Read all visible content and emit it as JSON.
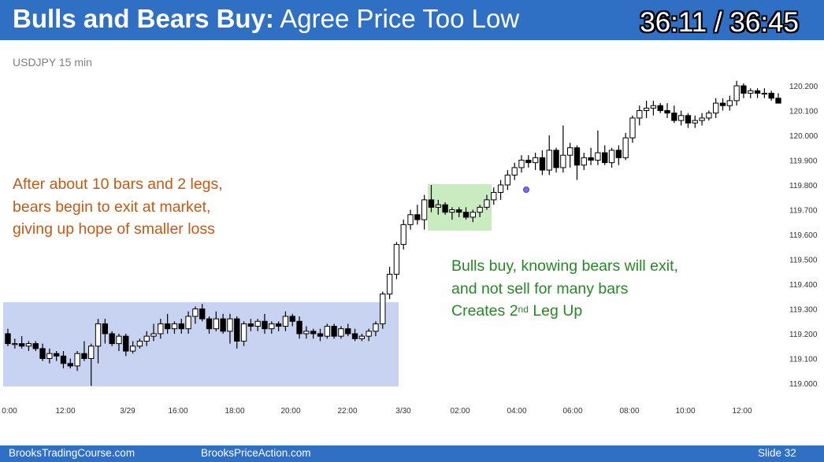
{
  "header": {
    "title_bold": "Bulls and Bears Buy:",
    "title_rest": " Agree Price Too Low",
    "timer": "36:11 / 36:45"
  },
  "symbol_label": "USDJPY 15 min",
  "annotations": {
    "orange": [
      "After about 10 bars and 2 legs,",
      "bears begin to exit at market,",
      "giving up hope of smaller loss"
    ],
    "green_line1": "Bulls buy, knowing bears will exit,",
    "green_line2": "and not sell for many bars",
    "green_line3_a": "Creates 2",
    "green_line3_sup": "nd",
    "green_line3_b": " Leg Up"
  },
  "footer": {
    "left": "BrooksTradingCourse.com",
    "center": "BrooksPriceAction.com",
    "right": "Slide  32"
  },
  "colors": {
    "header": "#2f6fc4",
    "blue_zone": "#c7d3f0",
    "green_zone": "#c9ebc0",
    "orange_text": "#c65911",
    "green_text": "#238a23"
  },
  "chart_data": {
    "type": "candlestick",
    "symbol": "USDJPY",
    "timeframe": "15 min",
    "x_tick_labels": [
      "0:00",
      "12:00",
      "3/29",
      "16:00",
      "18:00",
      "20:00",
      "22:00",
      "3/30",
      "02:00",
      "04:00",
      "06:00",
      "08:00",
      "10:00",
      "12:00"
    ],
    "y_tick_labels": [
      "119.000",
      "119.100",
      "119.200",
      "119.300",
      "119.400",
      "119.500",
      "119.600",
      "119.700",
      "119.800",
      "119.900",
      "120.000",
      "120.100",
      "120.200"
    ],
    "ylim": [
      118.97,
      120.25
    ],
    "zones": [
      {
        "name": "trading range",
        "x_from": "0:00",
        "x_to": "3/30",
        "y_range": [
          119.0,
          119.33
        ]
      },
      {
        "name": "pullback",
        "y_range": [
          119.62,
          119.81
        ]
      }
    ],
    "ohlc": [
      [
        119.2,
        119.22,
        119.15,
        119.16
      ],
      [
        119.16,
        119.18,
        119.14,
        119.16
      ],
      [
        119.16,
        119.19,
        119.14,
        119.15
      ],
      [
        119.15,
        119.17,
        119.13,
        119.16
      ],
      [
        119.16,
        119.17,
        119.13,
        119.14
      ],
      [
        119.14,
        119.16,
        119.09,
        119.1
      ],
      [
        119.1,
        119.14,
        119.08,
        119.12
      ],
      [
        119.12,
        119.13,
        119.09,
        119.11
      ],
      [
        119.11,
        119.13,
        119.06,
        119.08
      ],
      [
        119.08,
        119.1,
        119.06,
        119.07
      ],
      [
        119.07,
        119.13,
        119.05,
        119.12
      ],
      [
        119.12,
        119.17,
        119.09,
        119.1
      ],
      [
        119.1,
        119.16,
        118.99,
        119.15
      ],
      [
        119.15,
        119.26,
        119.08,
        119.24
      ],
      [
        119.24,
        119.26,
        119.16,
        119.2
      ],
      [
        119.2,
        119.21,
        119.15,
        119.16
      ],
      [
        119.16,
        119.2,
        119.13,
        119.19
      ],
      [
        119.19,
        119.2,
        119.11,
        119.13
      ],
      [
        119.13,
        119.17,
        119.12,
        119.15
      ],
      [
        119.15,
        119.18,
        119.14,
        119.17
      ],
      [
        119.17,
        119.21,
        119.15,
        119.19
      ],
      [
        119.19,
        119.24,
        119.17,
        119.2
      ],
      [
        119.2,
        119.26,
        119.18,
        119.24
      ],
      [
        119.24,
        119.28,
        119.2,
        119.22
      ],
      [
        119.22,
        119.25,
        119.2,
        119.24
      ],
      [
        119.24,
        119.26,
        119.2,
        119.22
      ],
      [
        119.22,
        119.29,
        119.2,
        119.27
      ],
      [
        119.27,
        119.31,
        119.24,
        119.3
      ],
      [
        119.3,
        119.32,
        119.25,
        119.26
      ],
      [
        119.26,
        119.27,
        119.2,
        119.22
      ],
      [
        119.22,
        119.29,
        119.21,
        119.26
      ],
      [
        119.26,
        119.28,
        119.2,
        119.21
      ],
      [
        119.21,
        119.28,
        119.16,
        119.26
      ],
      [
        119.26,
        119.27,
        119.14,
        119.17
      ],
      [
        119.17,
        119.25,
        119.15,
        119.24
      ],
      [
        119.24,
        119.26,
        119.21,
        119.23
      ],
      [
        119.23,
        119.26,
        119.21,
        119.25
      ],
      [
        119.25,
        119.28,
        119.2,
        119.22
      ],
      [
        119.22,
        119.25,
        119.2,
        119.24
      ],
      [
        119.24,
        119.25,
        119.21,
        119.23
      ],
      [
        119.23,
        119.29,
        119.21,
        119.27
      ],
      [
        119.27,
        119.28,
        119.23,
        119.25
      ],
      [
        119.25,
        119.27,
        119.18,
        119.2
      ],
      [
        119.2,
        119.23,
        119.18,
        119.21
      ],
      [
        119.21,
        119.22,
        119.18,
        119.2
      ],
      [
        119.2,
        119.22,
        119.17,
        119.19
      ],
      [
        119.19,
        119.24,
        119.18,
        119.23
      ],
      [
        119.23,
        119.24,
        119.18,
        119.19
      ],
      [
        119.19,
        119.23,
        119.18,
        119.22
      ],
      [
        119.22,
        119.24,
        119.19,
        119.2
      ],
      [
        119.2,
        119.22,
        119.17,
        119.18
      ],
      [
        119.18,
        119.2,
        119.17,
        119.19
      ],
      [
        119.19,
        119.22,
        119.17,
        119.21
      ],
      [
        119.21,
        119.25,
        119.19,
        119.24
      ],
      [
        119.24,
        119.37,
        119.22,
        119.36
      ],
      [
        119.36,
        119.47,
        119.34,
        119.44
      ],
      [
        119.44,
        119.57,
        119.42,
        119.56
      ],
      [
        119.56,
        119.66,
        119.54,
        119.64
      ],
      [
        119.64,
        119.7,
        119.62,
        119.68
      ],
      [
        119.68,
        119.72,
        119.64,
        119.66
      ],
      [
        119.66,
        119.76,
        119.62,
        119.74
      ],
      [
        119.74,
        119.8,
        119.69,
        119.71
      ],
      [
        119.71,
        119.74,
        119.68,
        119.72
      ],
      [
        119.72,
        119.73,
        119.68,
        119.69
      ],
      [
        119.69,
        119.71,
        119.66,
        119.7
      ],
      [
        119.7,
        119.71,
        119.67,
        119.69
      ],
      [
        119.69,
        119.71,
        119.66,
        119.67
      ],
      [
        119.67,
        119.7,
        119.65,
        119.69
      ],
      [
        119.69,
        119.72,
        119.67,
        119.71
      ],
      [
        119.71,
        119.76,
        119.7,
        119.74
      ],
      [
        119.74,
        119.79,
        119.72,
        119.77
      ],
      [
        119.77,
        119.82,
        119.74,
        119.8
      ],
      [
        119.8,
        119.86,
        119.78,
        119.84
      ],
      [
        119.84,
        119.89,
        119.82,
        119.87
      ],
      [
        119.87,
        119.92,
        119.85,
        119.9
      ],
      [
        119.9,
        119.92,
        119.87,
        119.89
      ],
      [
        119.89,
        119.93,
        119.86,
        119.91
      ],
      [
        119.91,
        119.94,
        119.84,
        119.86
      ],
      [
        119.86,
        120.0,
        119.84,
        119.94
      ],
      [
        119.94,
        119.95,
        119.85,
        119.87
      ],
      [
        119.87,
        120.04,
        119.85,
        119.92
      ],
      [
        119.92,
        119.97,
        119.87,
        119.95
      ],
      [
        119.95,
        119.96,
        119.82,
        119.88
      ],
      [
        119.88,
        119.93,
        119.86,
        119.91
      ],
      [
        119.91,
        119.95,
        119.88,
        119.9
      ],
      [
        119.9,
        120.02,
        119.88,
        119.93
      ],
      [
        119.93,
        119.96,
        119.88,
        119.89
      ],
      [
        119.89,
        119.95,
        119.87,
        119.94
      ],
      [
        119.94,
        119.96,
        119.88,
        119.91
      ],
      [
        119.91,
        120.01,
        119.9,
        119.99
      ],
      [
        119.99,
        120.08,
        119.97,
        120.07
      ],
      [
        120.07,
        120.12,
        120.04,
        120.1
      ],
      [
        120.1,
        120.14,
        120.07,
        120.11
      ],
      [
        120.11,
        120.14,
        120.08,
        120.12
      ],
      [
        120.12,
        120.13,
        120.09,
        120.1
      ],
      [
        120.1,
        120.13,
        120.07,
        120.09
      ],
      [
        120.09,
        120.12,
        120.05,
        120.06
      ],
      [
        120.06,
        120.1,
        120.04,
        120.08
      ],
      [
        120.08,
        120.09,
        120.03,
        120.05
      ],
      [
        120.05,
        120.08,
        120.03,
        120.06
      ],
      [
        120.06,
        120.09,
        120.04,
        120.07
      ],
      [
        120.07,
        120.1,
        120.06,
        120.09
      ],
      [
        120.09,
        120.15,
        120.07,
        120.13
      ],
      [
        120.13,
        120.15,
        120.1,
        120.12
      ],
      [
        120.12,
        120.16,
        120.1,
        120.14
      ],
      [
        120.14,
        120.22,
        120.12,
        120.2
      ],
      [
        120.2,
        120.21,
        120.15,
        120.17
      ],
      [
        120.17,
        120.19,
        120.15,
        120.18
      ],
      [
        120.18,
        120.19,
        120.15,
        120.17
      ],
      [
        120.17,
        120.19,
        120.15,
        120.17
      ],
      [
        120.17,
        120.18,
        120.14,
        120.15
      ],
      [
        120.15,
        120.17,
        120.13,
        120.13
      ]
    ]
  }
}
